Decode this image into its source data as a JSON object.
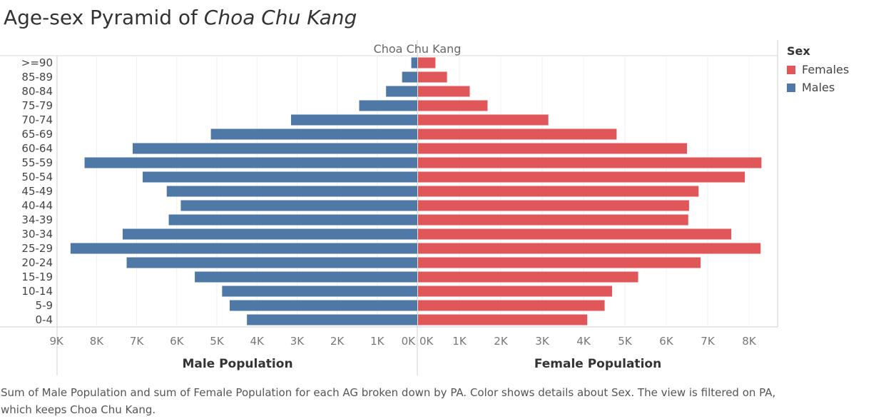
{
  "title": {
    "prefix": "Age-sex Pyramid of ",
    "place": "Choa Chu Kang"
  },
  "panel_header": "Choa Chu Kang",
  "legend": {
    "title": "Sex",
    "items": [
      {
        "label": "Females",
        "color": "#e15759"
      },
      {
        "label": "Males",
        "color": "#4e79a7"
      }
    ]
  },
  "caption": "Sum of Male Population and sum of Female Population for each AG broken down by PA.  Color shows details about Sex. The view is filtered on PA, which keeps Choa Chu Kang.",
  "chart_data": {
    "type": "bar",
    "orientation": "horizontal",
    "categories": [
      ">=90",
      "85-89",
      "80-84",
      "75-79",
      "70-74",
      "65-69",
      "60-64",
      "55-59",
      "50-54",
      "45-49",
      "40-44",
      "34-39",
      "30-34",
      "25-29",
      "20-24",
      "15-19",
      "10-14",
      "5-9",
      "0-4"
    ],
    "series": [
      {
        "name": "Males",
        "color": "#4e79a7",
        "values": [
          150,
          380,
          780,
          1450,
          3150,
          5150,
          7100,
          8300,
          6850,
          6250,
          5900,
          6200,
          7350,
          8650,
          7250,
          5550,
          4870,
          4680,
          4250
        ]
      },
      {
        "name": "Females",
        "color": "#e15759",
        "values": [
          420,
          700,
          1250,
          1680,
          3150,
          4800,
          6500,
          8300,
          7900,
          6780,
          6550,
          6530,
          7570,
          8280,
          6830,
          5320,
          4690,
          4510,
          4090
        ]
      }
    ],
    "left_axis": {
      "title": "Male Population",
      "range": [
        9000,
        0
      ],
      "ticks": [
        "9K",
        "8K",
        "7K",
        "6K",
        "5K",
        "4K",
        "3K",
        "2K",
        "1K",
        "0K"
      ]
    },
    "right_axis": {
      "title": "Female Population",
      "range": [
        0,
        8700
      ],
      "ticks": [
        "0K",
        "1K",
        "2K",
        "3K",
        "4K",
        "5K",
        "6K",
        "7K",
        "8K"
      ]
    }
  }
}
